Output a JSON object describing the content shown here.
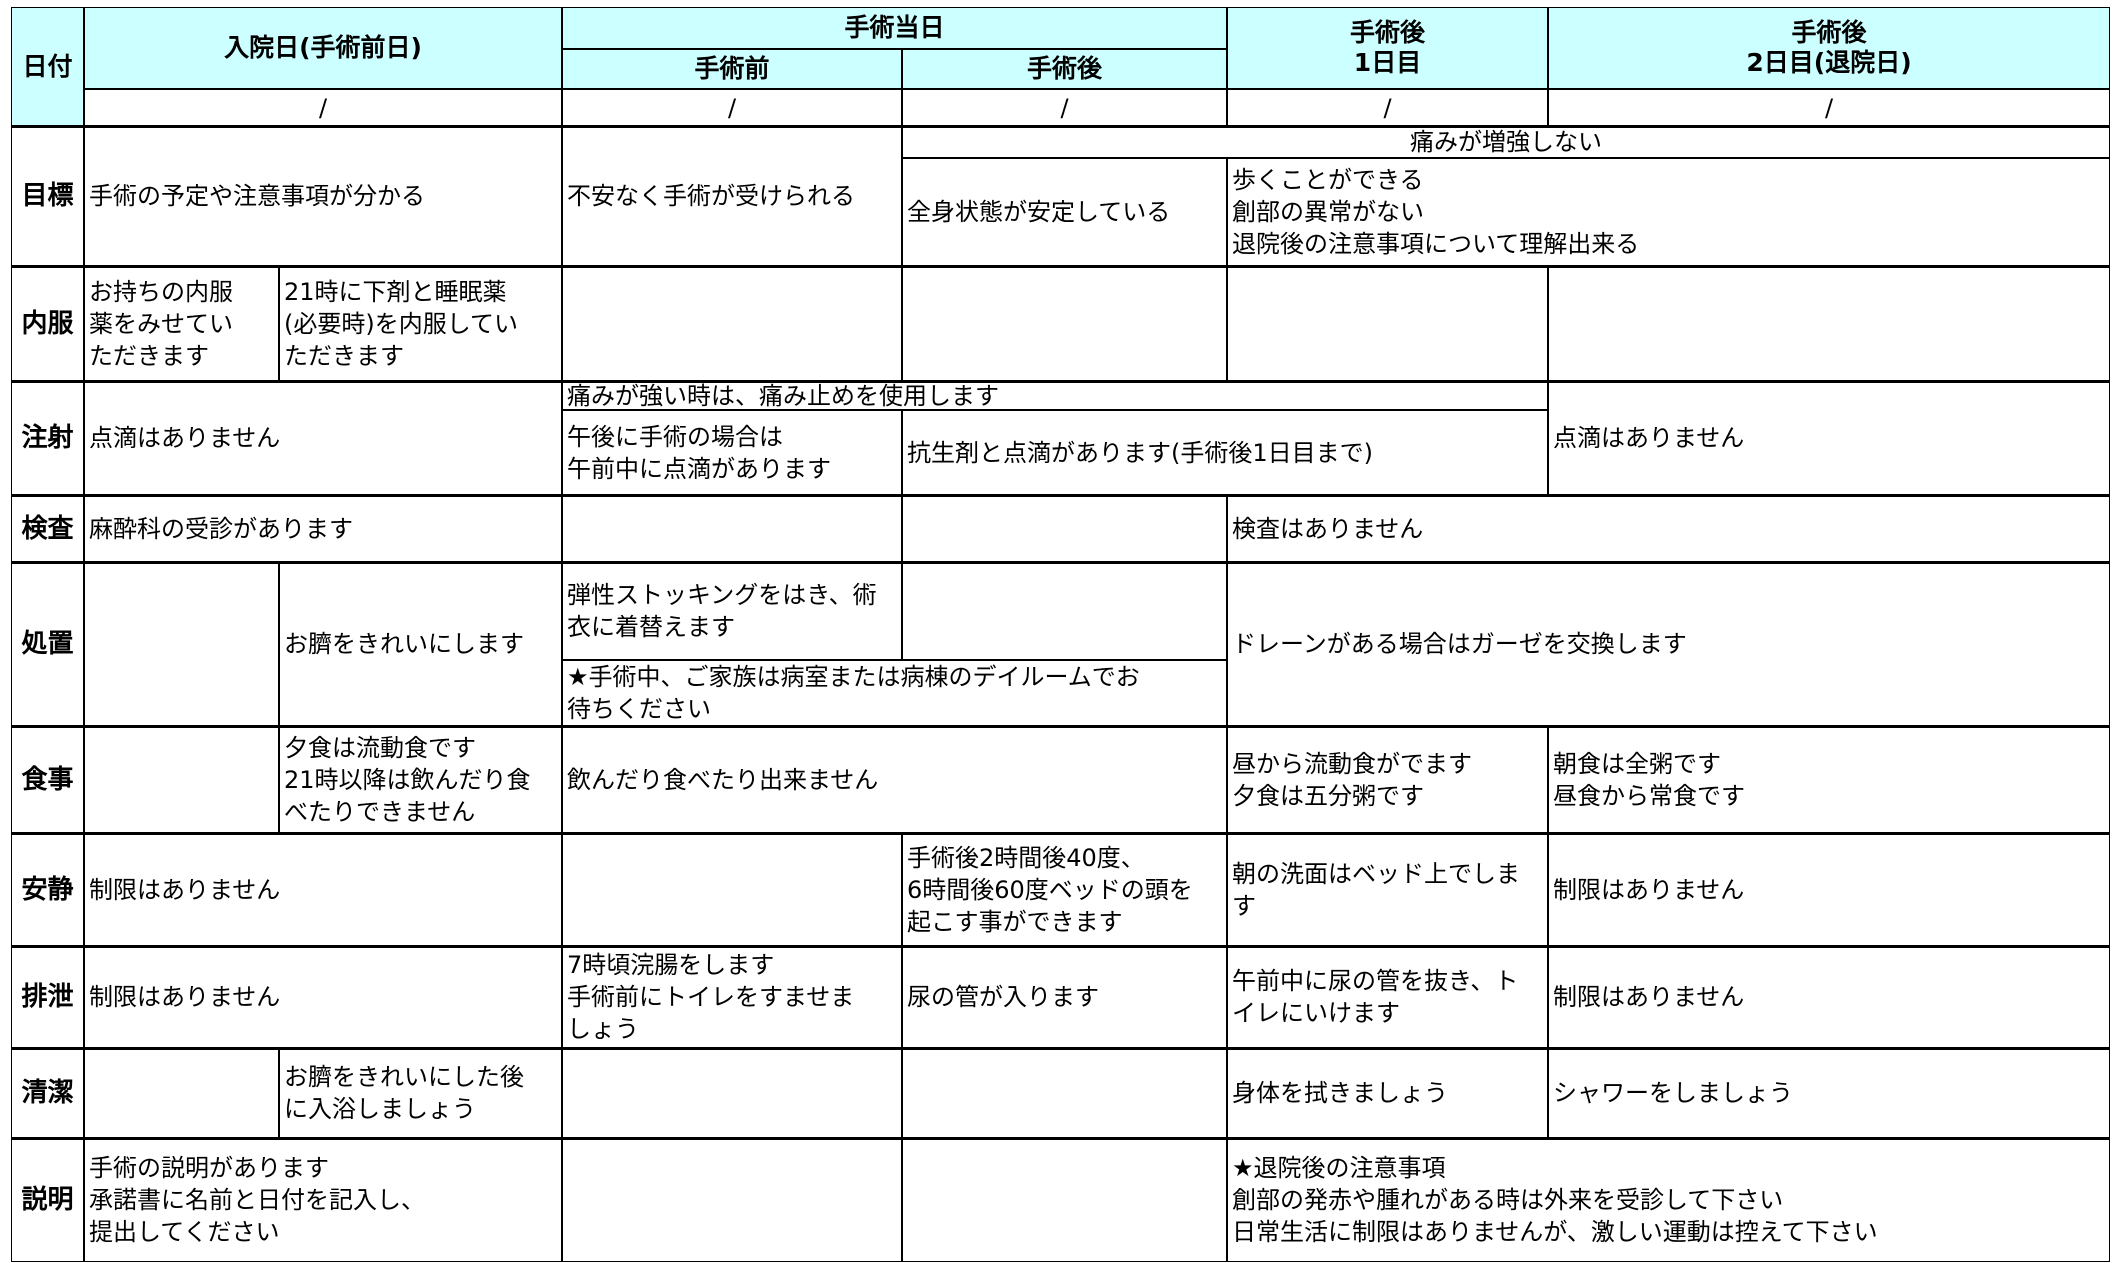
{
  "header": {
    "date_label": "日付",
    "admission_day": "入院日(手術前日)",
    "surgery_day": "手術当日",
    "before_surgery": "手術前",
    "after_surgery": "手術後",
    "post_day1": [
      "手術後",
      "1日目"
    ],
    "post_day2": [
      "手術後",
      "2日目(退院日)"
    ],
    "date_slashes": [
      "/",
      "/",
      "/",
      "/",
      "/"
    ]
  },
  "rows": [
    {
      "label": "目標",
      "cells": [
        [
          "手術の予定や注意事項が分かる"
        ],
        [
          "不安なく手術が受けられる"
        ],
        [
          "痛みが増強しない"
        ],
        [
          "全身状態が安定している"
        ],
        [
          "歩くことができる",
          "創部の異常がない",
          "退院後の注意事項について理解出来る"
        ]
      ]
    },
    {
      "label": "内服",
      "cells": [
        [
          "お持ちの内服",
          "薬をみせてい",
          "ただきます"
        ],
        [
          "21時に下剤と睡眠薬",
          "(必要時)を内服してい",
          "ただきます"
        ]
      ]
    },
    {
      "label": "注射",
      "cells": [
        [
          "点滴はありません"
        ],
        [
          "痛みが強い時は、痛み止めを使用します"
        ],
        [
          "午後に手術の場合は",
          "午前中に点滴があります"
        ],
        [
          "抗生剤と点滴があります(手術後1日目まで)"
        ],
        [
          "点滴はありません"
        ]
      ]
    },
    {
      "label": "検査",
      "cells": [
        [
          "麻酔科の受診があります"
        ],
        [
          "検査はありません"
        ]
      ]
    },
    {
      "label": "処置",
      "cells": [
        [
          "お臍をきれいにします"
        ],
        [
          "弾性ストッキングをはき、術",
          "衣に着替えます"
        ],
        [
          "★手術中、ご家族は病室または病棟のデイルームでお",
          "待ちください"
        ],
        [
          "ドレーンがある場合はガーゼを交換します"
        ]
      ]
    },
    {
      "label": "食事",
      "cells": [
        [
          "夕食は流動食です",
          "21時以降は飲んだり食",
          "べたりできません"
        ],
        [
          "飲んだり食べたり出来ません"
        ],
        [
          "昼から流動食がでます",
          "夕食は五分粥です"
        ],
        [
          "朝食は全粥です",
          "昼食から常食です"
        ]
      ]
    },
    {
      "label": "安静",
      "cells": [
        [
          "制限はありません"
        ],
        [
          "手術後2時間後40度、",
          "6時間後60度ベッドの頭を",
          "起こす事ができます"
        ],
        [
          "朝の洗面はベッド上でしま",
          "す"
        ],
        [
          "制限はありません"
        ]
      ]
    },
    {
      "label": "排泄",
      "cells": [
        [
          "制限はありません"
        ],
        [
          "7時頃浣腸をします",
          "手術前にトイレをすませま",
          "しょう"
        ],
        [
          "尿の管が入ります"
        ],
        [
          "午前中に尿の管を抜き、ト",
          "イレにいけます"
        ],
        [
          "制限はありません"
        ]
      ]
    },
    {
      "label": "清潔",
      "cells": [
        [
          "お臍をきれいにした後",
          "に入浴しましょう"
        ],
        [
          "身体を拭きましょう"
        ],
        [
          "シャワーをしましょう"
        ]
      ]
    },
    {
      "label": "説明",
      "cells": [
        [
          "手術の説明があります",
          "承諾書に名前と日付を記入し、",
          "提出してください"
        ],
        [
          "★退院後の注意事項",
          "創部の発赤や腫れがある時は外来を受診して下さい",
          "日常生活に制限はありませんが、激しい運動は控えて下さい"
        ]
      ]
    }
  ]
}
